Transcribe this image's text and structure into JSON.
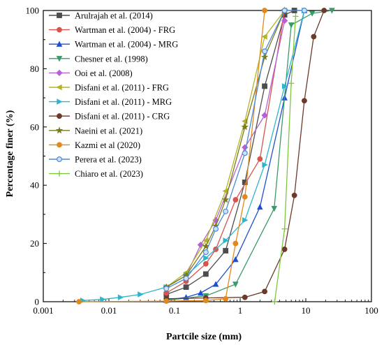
{
  "chart_data": {
    "type": "line",
    "xlabel": "Partcile size (mm)",
    "ylabel": "Percentage finer (%)",
    "xscale": "log",
    "xlim": [
      0.001,
      100
    ],
    "ylim": [
      0,
      100
    ],
    "xticks": [
      0.001,
      0.01,
      0.1,
      1,
      10,
      100
    ],
    "xtick_labels": [
      "0.001",
      "0.01",
      "0.1",
      "1",
      "10",
      "100"
    ],
    "yticks": [
      0,
      20,
      40,
      60,
      80,
      100
    ],
    "ytick_labels": [
      "0",
      "20",
      "40",
      "60",
      "80",
      "100"
    ],
    "grid": false,
    "legend_position": "top-left",
    "series": [
      {
        "name": "Arulrajah et al. (2014)",
        "color": "#4d4d4d",
        "marker": "square",
        "x": [
          0.075,
          0.15,
          0.3,
          0.6,
          1.18,
          2.36,
          4.75,
          6.7
        ],
        "y": [
          2.5,
          5,
          9.5,
          17.5,
          41,
          74,
          98.5,
          100
        ]
      },
      {
        "name": "Wartman et al. (2004) - FRG",
        "color": "#d9534f",
        "marker": "circle",
        "x": [
          0.075,
          0.15,
          0.3,
          0.425,
          0.85,
          2.0,
          4.75
        ],
        "y": [
          3,
          7,
          13,
          18,
          35,
          49,
          100
        ]
      },
      {
        "name": "Wartman et al. (2004) - MRG",
        "color": "#1f4fd1",
        "marker": "triangle-up",
        "x": [
          0.075,
          0.15,
          0.25,
          0.425,
          0.85,
          2.0,
          4.75,
          9.5
        ],
        "y": [
          0.5,
          1.5,
          3,
          6,
          14.5,
          32.5,
          70,
          100
        ]
      },
      {
        "name": "Chesner et al. (1998)",
        "color": "#3c9a6a",
        "marker": "triangle-down",
        "x": [
          0.075,
          0.3,
          0.85,
          3.3,
          6.0,
          12.5,
          25
        ],
        "y": [
          0.5,
          2,
          6,
          32,
          95,
          99,
          100
        ]
      },
      {
        "name": "Ooi et al. (2008)",
        "color": "#b85fd6",
        "marker": "diamond",
        "x": [
          0.075,
          0.15,
          0.25,
          0.425,
          1.18,
          2.36,
          4.75
        ],
        "y": [
          5,
          9,
          19.5,
          28,
          53,
          64,
          96.5
        ]
      },
      {
        "name": "Disfani et al. (2011) - FRG",
        "color": "#b3b32a",
        "marker": "triangle-left",
        "x": [
          0.075,
          0.15,
          0.3,
          0.6,
          1.18,
          2.36,
          4.75
        ],
        "y": [
          5,
          10,
          21,
          38,
          62,
          91,
          100
        ]
      },
      {
        "name": "Disfani et al. (2011) - MRG",
        "color": "#2fb5c9",
        "marker": "triangle-right",
        "x": [
          0.004,
          0.008,
          0.015,
          0.03,
          0.075,
          0.15,
          0.3,
          0.6,
          1.18,
          2.36,
          4.75,
          9.5
        ],
        "y": [
          0.4,
          0.8,
          1.5,
          2.5,
          5,
          9,
          15,
          21,
          28,
          47,
          74,
          100
        ]
      },
      {
        "name": "Disfani et al. (2011) - CRG",
        "color": "#6b3a2a",
        "marker": "circle",
        "x": [
          0.075,
          0.3,
          1.18,
          2.36,
          4.75,
          6.7,
          9.5,
          13.2,
          19
        ],
        "y": [
          1,
          1.3,
          1.5,
          3.5,
          18,
          36.5,
          69,
          91,
          100
        ]
      },
      {
        "name": "Naeini et al. (2021)",
        "color": "#7a7a1a",
        "marker": "star",
        "x": [
          0.075,
          0.15,
          0.3,
          0.425,
          0.6,
          1.18,
          2.36,
          4.75
        ],
        "y": [
          5,
          9,
          19,
          26,
          35,
          60,
          84,
          100
        ]
      },
      {
        "name": "Kazmi et al (2020)",
        "color": "#e08a1e",
        "marker": "circle",
        "x": [
          0.0035,
          0.075,
          0.3,
          0.6,
          0.85,
          1.18,
          2.36
        ],
        "y": [
          0,
          0.2,
          0.4,
          1,
          20,
          36,
          100
        ]
      },
      {
        "name": "Perera et al. (2023)",
        "color": "#4b8ad6",
        "marker": "circle-open",
        "x": [
          0.075,
          0.15,
          0.3,
          0.425,
          0.6,
          1.18,
          2.36,
          4.75,
          9.5
        ],
        "y": [
          4.5,
          8,
          17,
          25,
          31,
          51,
          86,
          100,
          100
        ]
      },
      {
        "name": "Chiaro et al. (2023)",
        "color": "#7dc83a",
        "marker": "plus",
        "x": [
          3.35,
          4.75,
          6.0,
          7.0
        ],
        "y": [
          0,
          25,
          75,
          98
        ]
      }
    ]
  }
}
